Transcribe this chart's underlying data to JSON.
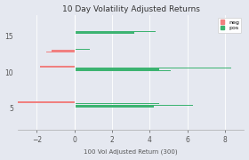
{
  "title": "10 Day Volatility Adjusted Returns",
  "xlabel": "100 Vol Adjusted Return (300)",
  "yticks": [
    5,
    10,
    15
  ],
  "xlim": [
    -3,
    9
  ],
  "ylim": [
    2,
    18
  ],
  "background_color": "#e5e8f0",
  "plot_bg_color": "#e5e8f0",
  "neg_color": "#f08080",
  "pos_color": "#3cb371",
  "legend_neg": "neg",
  "legend_pos": "pos",
  "bar_height": 0.18,
  "bar_gap": 0.2,
  "groups": [
    {
      "y_center": 15.5,
      "bars": [
        {
          "val": 0.05,
          "color": "pos"
        },
        {
          "val": 3.2,
          "color": "pos"
        },
        {
          "val": 4.3,
          "color": "pos"
        }
      ]
    },
    {
      "y_center": 13.0,
      "bars": [
        {
          "val": -1.5,
          "color": "neg"
        },
        {
          "val": -1.2,
          "color": "neg"
        },
        {
          "val": 0.8,
          "color": "pos"
        }
      ]
    },
    {
      "y_center": 10.5,
      "bars": [
        {
          "val": 5.1,
          "color": "pos"
        },
        {
          "val": 4.5,
          "color": "pos"
        },
        {
          "val": 8.3,
          "color": "pos"
        },
        {
          "val": -1.8,
          "color": "neg"
        }
      ]
    },
    {
      "y_center": 5.5,
      "bars": [
        {
          "val": 4.2,
          "color": "pos"
        },
        {
          "val": 6.3,
          "color": "pos"
        },
        {
          "val": 4.5,
          "color": "pos"
        },
        {
          "val": -3.0,
          "color": "neg"
        }
      ]
    }
  ]
}
